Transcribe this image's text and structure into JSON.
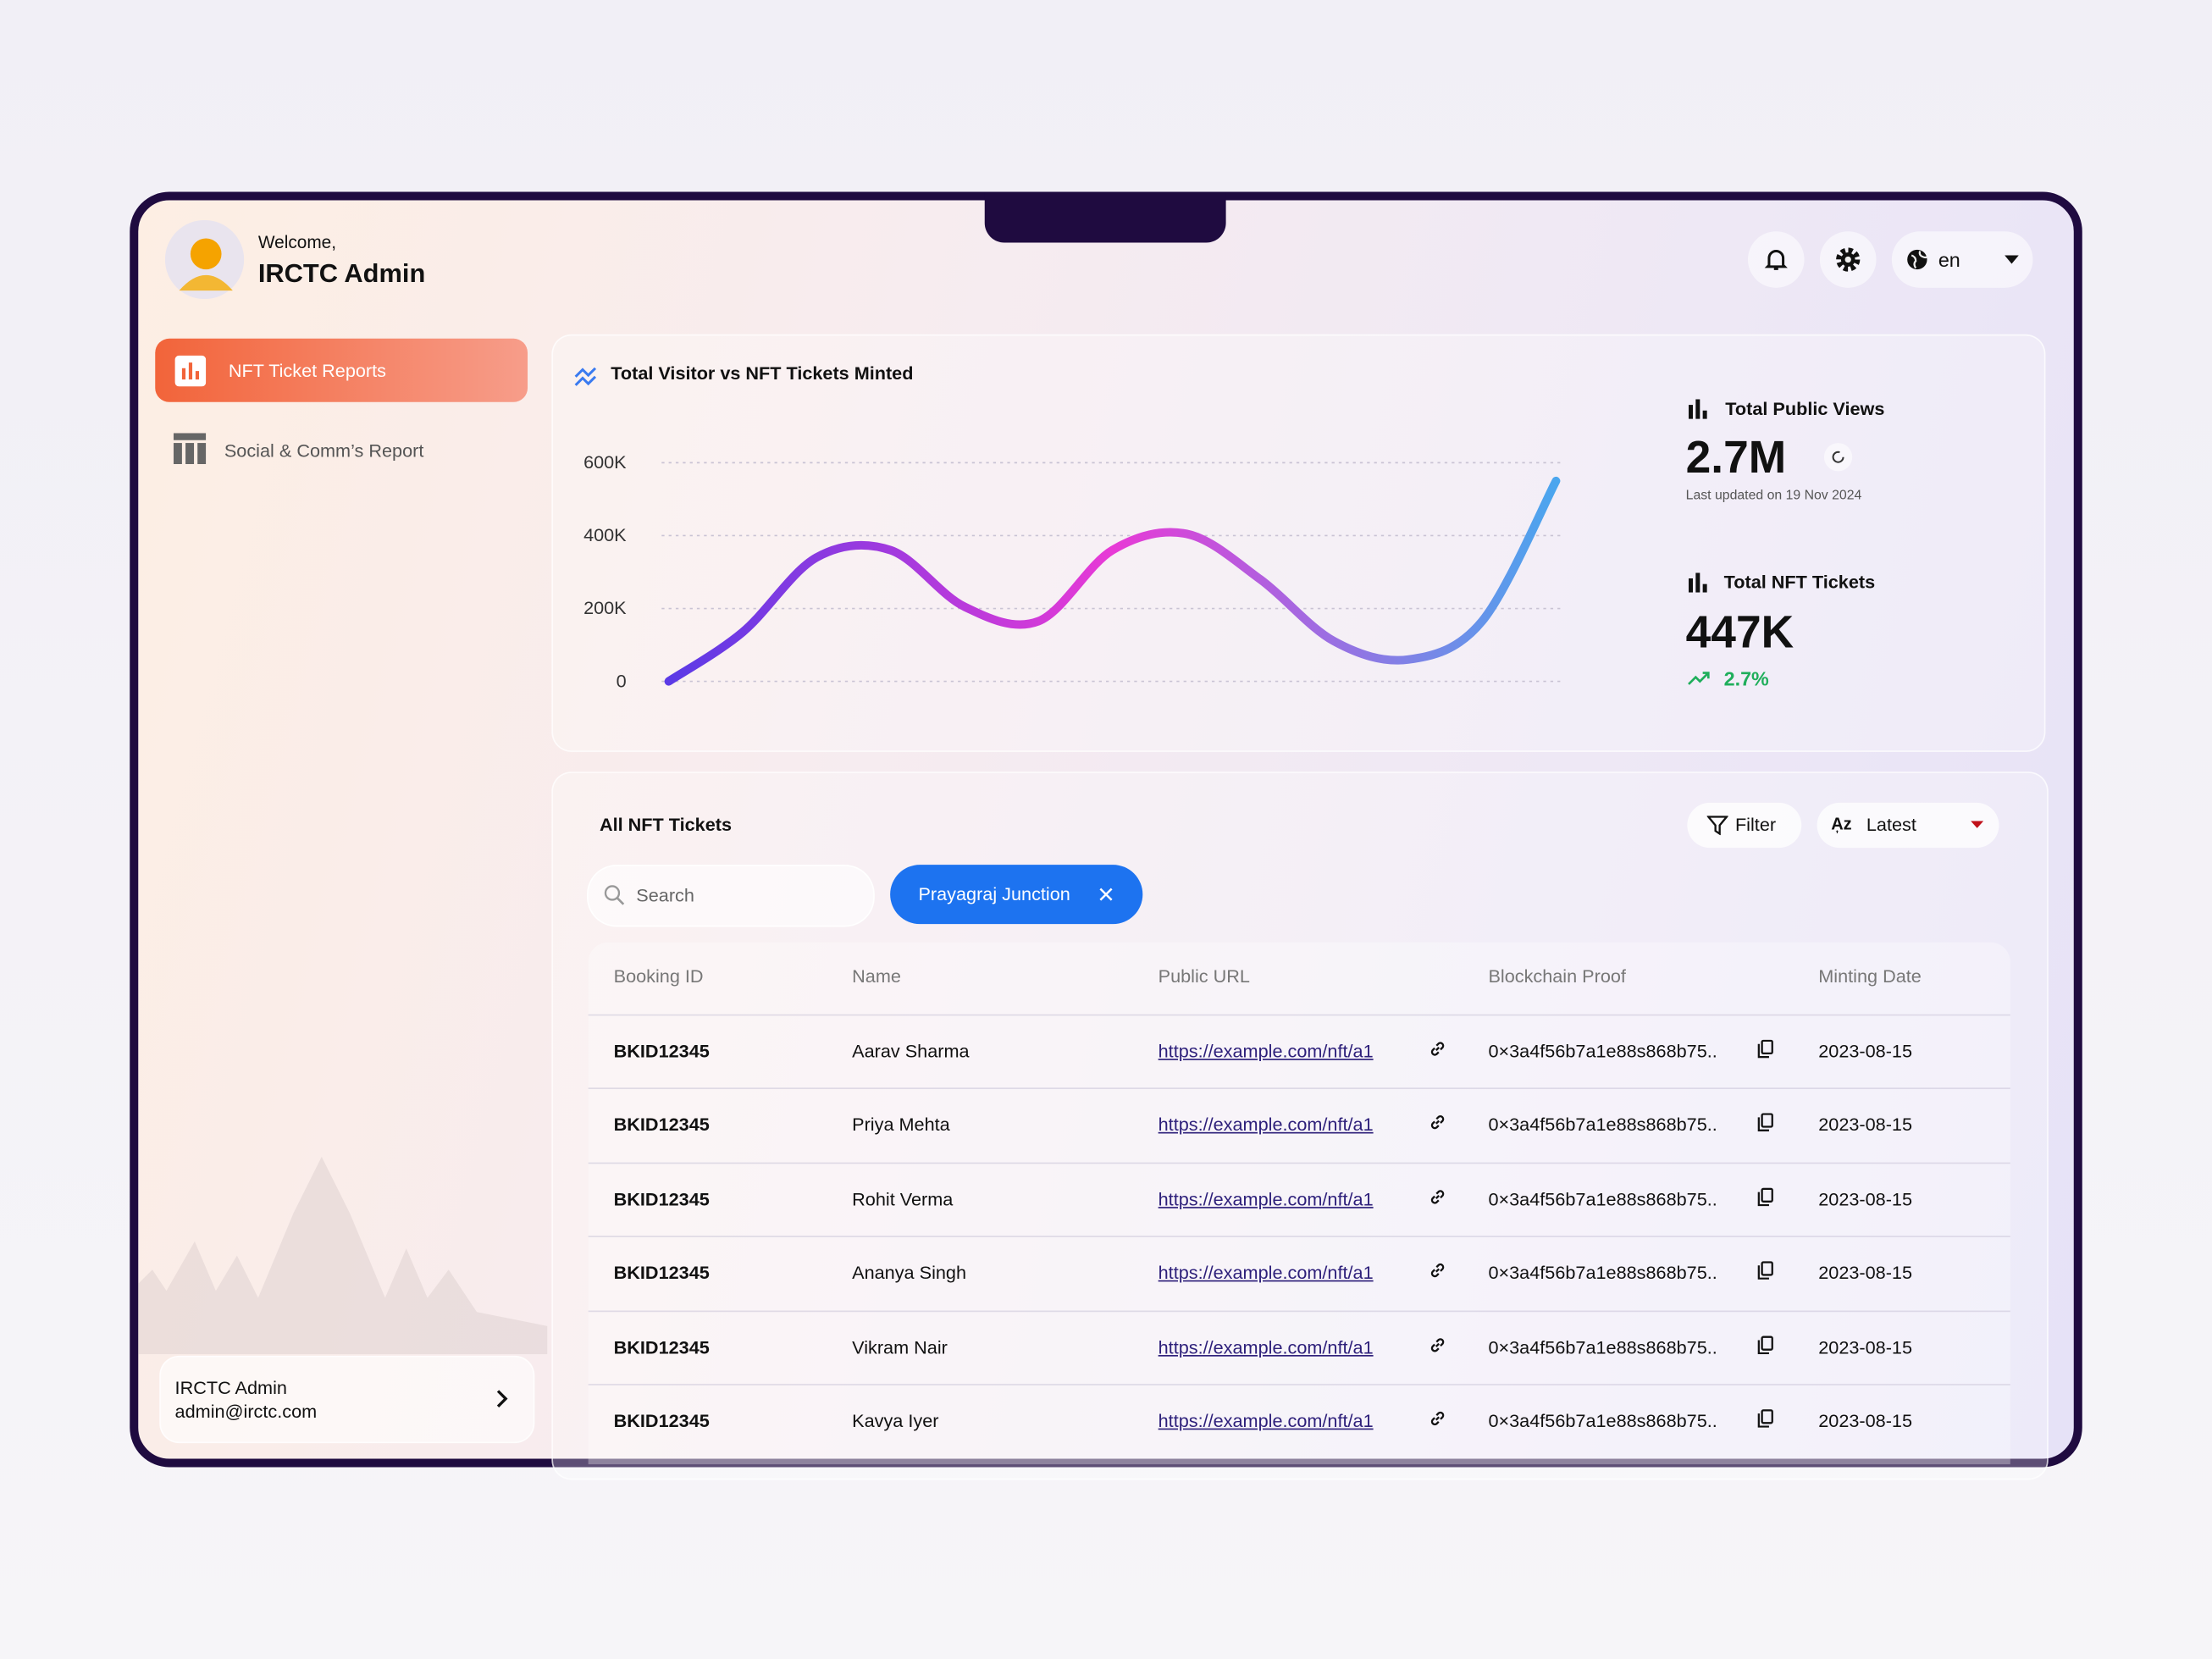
{
  "header": {
    "welcome": "Welcome,",
    "user": "IRCTC Admin",
    "language": "en"
  },
  "sidebar": {
    "nav": [
      "NFT Ticket Reports",
      "Social & Comm’s Report"
    ],
    "profile": {
      "name": "IRCTC Admin",
      "email": "admin@irctc.com"
    }
  },
  "chart_data": {
    "type": "line",
    "title": "Total Visitor vs NFT Tickets Minted",
    "categories": [
      null,
      null,
      null,
      null,
      null,
      null,
      null,
      null,
      null,
      null,
      null,
      null,
      null
    ],
    "values": [
      0,
      135000,
      340000,
      360000,
      205000,
      165000,
      360000,
      405000,
      280000,
      110000,
      60000,
      165000,
      550000
    ],
    "ylim": [
      0,
      600000
    ],
    "yticks": [
      0,
      {
        "value": 200000,
        "label": "200K"
      },
      {
        "value": 400000,
        "label": "400K"
      },
      {
        "value": 600000,
        "label": "600K"
      }
    ],
    "grid": true,
    "colors": [
      "#5b3ae6",
      "#e83ad6",
      "#4aa6ee"
    ]
  },
  "stats": [
    {
      "label": "Total Public Views",
      "value": "2.7M",
      "note": "Last updated on 19 Nov 2024"
    },
    {
      "label": "Total NFT Tickets",
      "value": "447K",
      "change": "2.7%"
    }
  ],
  "table": {
    "title": "All NFT Tickets",
    "filter": "Filter",
    "sort": "Latest",
    "search": "Search",
    "chip": "Prayagraj Junction",
    "columns": [
      "Booking ID",
      "Name",
      "Public URL",
      "Blockchain Proof",
      "Minting Date"
    ],
    "rows": [
      [
        "BKID12345",
        "Aarav Sharma",
        "https://example.com/nft/a1",
        "0×3a4f56b7a1e88s868b75..",
        "2023-08-15"
      ],
      [
        "BKID12345",
        "Priya Mehta",
        "https://example.com/nft/a1",
        "0×3a4f56b7a1e88s868b75..",
        "2023-08-15"
      ],
      [
        "BKID12345",
        "Rohit Verma",
        "https://example.com/nft/a1",
        "0×3a4f56b7a1e88s868b75..",
        "2023-08-15"
      ],
      [
        "BKID12345",
        "Ananya Singh",
        "https://example.com/nft/a1",
        "0×3a4f56b7a1e88s868b75..",
        "2023-08-15"
      ],
      [
        "BKID12345",
        "Vikram Nair",
        "https://example.com/nft/a1",
        "0×3a4f56b7a1e88s868b75..",
        "2023-08-15"
      ],
      [
        "BKID12345",
        "Kavya Iyer",
        "https://example.com/nft/a1",
        "0×3a4f56b7a1e88s868b75..",
        "2023-08-15"
      ]
    ]
  }
}
